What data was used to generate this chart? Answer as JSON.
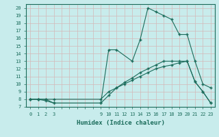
{
  "xlabel": "Humidex (Indice chaleur)",
  "bg_color": "#c8ecec",
  "grid_color": "#d4b8b8",
  "line_color": "#1a6b5a",
  "xlim": [
    -0.5,
    23.5
  ],
  "ylim": [
    7,
    20.5
  ],
  "xticks": [
    0,
    1,
    2,
    3,
    9,
    10,
    11,
    12,
    13,
    14,
    15,
    16,
    17,
    18,
    19,
    20,
    21,
    22,
    23
  ],
  "yticks": [
    7,
    8,
    9,
    10,
    11,
    12,
    13,
    14,
    15,
    16,
    17,
    18,
    19,
    20
  ],
  "line1_x": [
    0,
    1,
    2,
    3,
    9,
    10,
    11,
    13,
    14,
    15,
    16,
    17,
    18,
    19,
    20,
    21,
    22,
    23
  ],
  "line1_y": [
    8,
    8,
    8,
    7.5,
    7.5,
    14.5,
    14.5,
    13,
    15.8,
    20,
    19.5,
    19,
    18.5,
    16.5,
    16.5,
    13,
    10,
    9.5
  ],
  "line2_x": [
    0,
    1,
    2,
    3,
    9,
    10,
    11,
    12,
    13,
    14,
    15,
    16,
    17,
    18,
    19,
    20,
    21,
    22,
    23
  ],
  "line2_y": [
    8,
    8,
    8,
    8,
    8,
    9,
    9.5,
    10,
    10.5,
    11,
    11.5,
    12,
    12.3,
    12.5,
    12.8,
    13,
    10.3,
    9,
    7.5
  ],
  "line3_x": [
    0,
    1,
    2,
    3,
    9,
    10,
    11,
    12,
    13,
    14,
    15,
    16,
    17,
    18,
    19,
    20,
    21,
    22,
    23
  ],
  "line3_y": [
    8,
    8,
    7.8,
    7.5,
    7.5,
    8.5,
    9.5,
    10.2,
    10.8,
    11.5,
    12,
    12.5,
    13,
    13,
    13,
    13,
    10.3,
    9,
    7.5
  ]
}
